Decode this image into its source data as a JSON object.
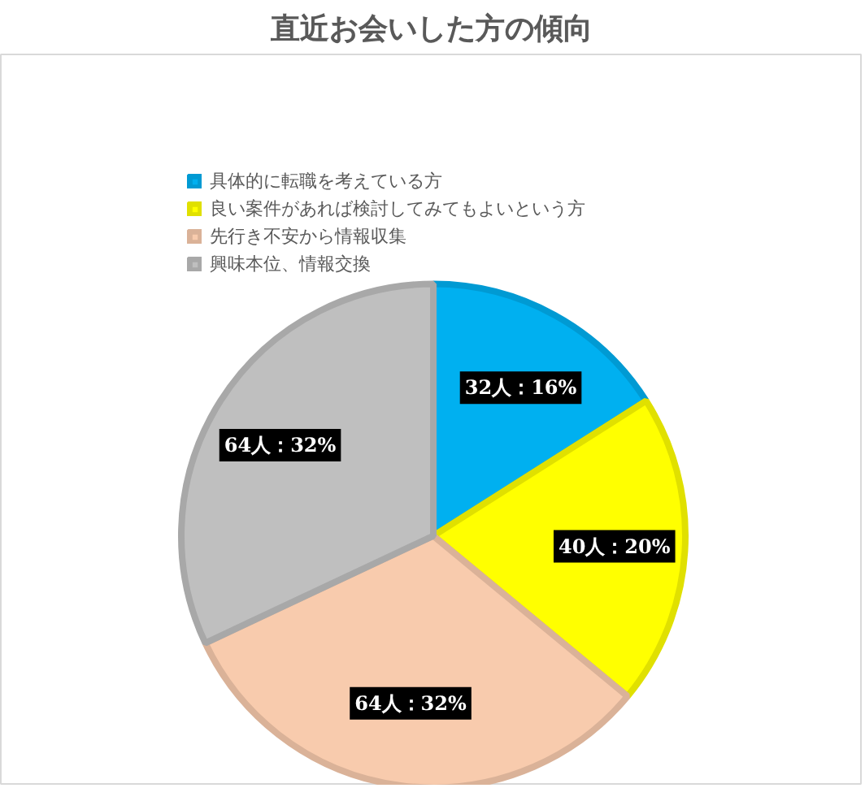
{
  "chart_data": {
    "type": "pie",
    "title": "直近お会いした方の傾向",
    "categories": [
      "具体的に転職を考えている方",
      "良い案件があれば検討してみてもよいという方",
      "先行き不安から情報収集",
      "興味本位、情報交換"
    ],
    "values": [
      32,
      40,
      64,
      64
    ],
    "colors": [
      "#00b0f0",
      "#ffff00",
      "#f8cbad",
      "#bfbfbf"
    ],
    "value_labels": [
      "32人：16%",
      "40人：20%",
      "64人：32%",
      "64人：32%"
    ],
    "legend": "top left"
  }
}
